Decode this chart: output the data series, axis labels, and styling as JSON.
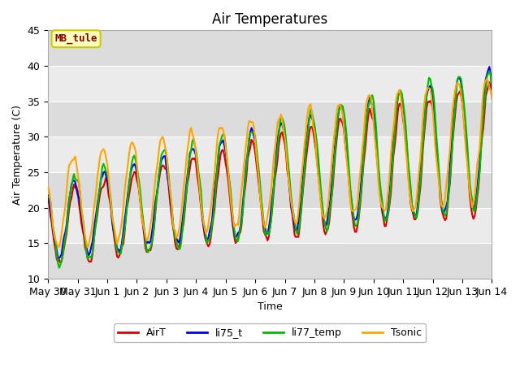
{
  "title": "Air Temperatures",
  "ylabel": "Air Temperature (C)",
  "xlabel": "Time",
  "ylim": [
    10,
    45
  ],
  "annotation_text": "MB_tule",
  "annotation_color": "#8B0000",
  "annotation_bg": "#FFFFC0",
  "annotation_border": "#CCCC00",
  "series": {
    "AirT": {
      "color": "#DD0000",
      "lw": 1.5,
      "zorder": 3
    },
    "li75_t": {
      "color": "#0000EE",
      "lw": 1.5,
      "zorder": 4
    },
    "li77_temp": {
      "color": "#00BB00",
      "lw": 1.5,
      "zorder": 5
    },
    "Tsonic": {
      "color": "#FFA500",
      "lw": 1.5,
      "zorder": 6
    }
  },
  "tick_labels": [
    "May 30",
    "May 31",
    "Jun 1",
    "Jun 2",
    "Jun 3",
    "Jun 4",
    "Jun 5",
    "Jun 6",
    "Jun 7",
    "Jun 8",
    "Jun 9",
    "Jun 10",
    "Jun 11",
    "Jun 12",
    "Jun 13",
    "Jun 14"
  ],
  "yticks": [
    10,
    15,
    20,
    25,
    30,
    35,
    40,
    45
  ],
  "band_colors": [
    "#DCDCDC",
    "#EBEBEB"
  ],
  "grid_line_color": "#FFFFFF",
  "fig_bg": "#FFFFFF",
  "plot_bg": "#E8E8E8"
}
